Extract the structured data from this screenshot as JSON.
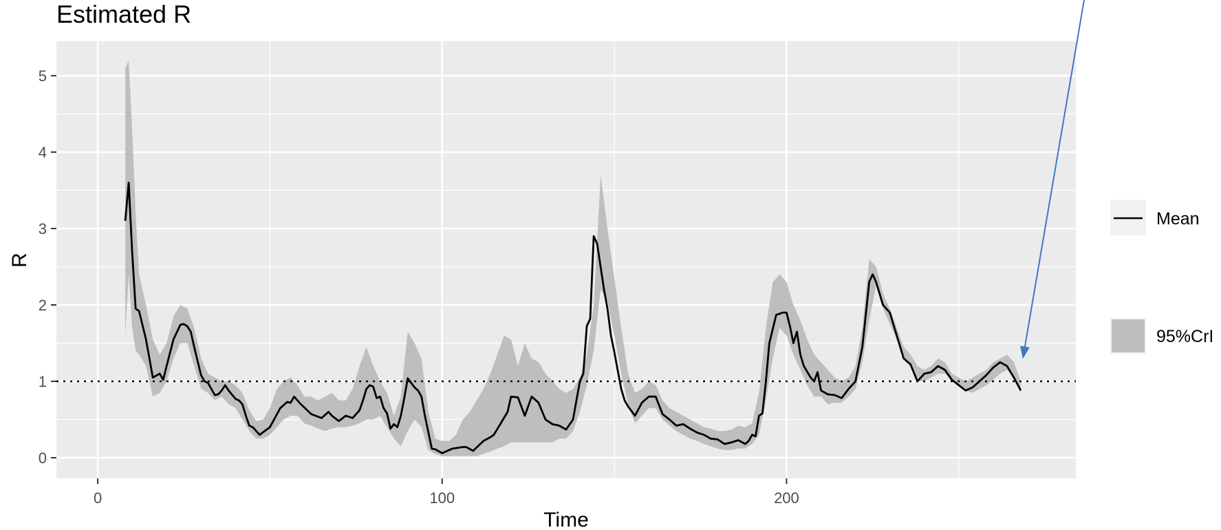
{
  "chart_data": {
    "type": "line",
    "title": "Estimated R",
    "xlabel": "Time",
    "ylabel": "R",
    "xlim": [
      -12,
      284
    ],
    "ylim": [
      -0.27,
      5.45
    ],
    "x_ticks": [
      0,
      100,
      200
    ],
    "x_tick_labels": [
      "0",
      "100",
      "200"
    ],
    "y_ticks": [
      0,
      1,
      2,
      3,
      4,
      5
    ],
    "y_tick_labels": [
      "0",
      "1",
      "2",
      "3",
      "4",
      "5"
    ],
    "grid": true,
    "legend_position": "right",
    "reference_line": {
      "y": 1,
      "style": "dotted"
    },
    "annotation": {
      "type": "arrow",
      "color": "#4472C4",
      "points_to": {
        "x": 268,
        "y": 1.25
      }
    },
    "colors": {
      "panel": "#EBEBEB",
      "grid": "#FFFFFF",
      "mean": "#000000",
      "ribbon": "#BEBEBE",
      "arrow": "#4472C4",
      "legend_key_bg": "#F2F2F2"
    },
    "series": [
      {
        "name": "Mean",
        "kind": "line",
        "x": [
          8,
          9,
          10,
          11,
          12,
          14,
          16,
          18,
          19,
          20,
          22,
          24,
          25,
          26,
          27,
          28,
          30,
          31,
          32,
          33,
          34,
          35,
          36,
          37,
          38,
          40,
          41,
          42,
          43,
          44,
          45,
          47,
          50,
          53,
          55,
          56,
          57,
          58,
          59,
          62,
          65,
          67,
          68,
          70,
          72,
          74,
          76,
          77,
          78,
          79,
          80,
          81,
          82,
          83,
          84,
          85,
          86,
          87,
          88,
          89,
          90,
          92,
          93,
          94,
          95,
          97,
          98,
          100,
          103,
          106,
          107,
          109,
          112,
          114,
          115,
          117,
          119,
          120,
          122,
          124,
          126,
          128,
          130,
          132,
          134,
          136,
          138,
          140,
          141,
          142,
          143,
          144,
          145,
          146,
          147,
          148,
          149,
          150,
          152,
          153,
          154,
          156,
          158,
          160,
          162,
          164,
          166,
          168,
          170,
          172,
          174,
          176,
          178,
          180,
          182,
          184,
          186,
          188,
          189,
          190,
          191,
          192,
          193,
          194,
          195,
          197,
          199,
          200,
          201,
          202,
          203,
          204,
          205,
          207,
          208,
          209,
          210,
          212,
          214,
          216,
          218,
          220,
          222,
          223,
          224,
          225,
          226,
          228,
          230,
          232,
          234,
          236,
          238,
          240,
          242,
          244,
          246,
          248,
          250,
          252,
          254,
          256,
          258,
          260,
          262,
          264,
          266,
          268
        ],
        "y": [
          3.1,
          3.6,
          2.7,
          1.95,
          1.92,
          1.55,
          1.05,
          1.1,
          1.02,
          1.2,
          1.55,
          1.74,
          1.75,
          1.72,
          1.65,
          1.45,
          1.08,
          1.0,
          0.98,
          0.9,
          0.82,
          0.83,
          0.88,
          0.95,
          0.88,
          0.77,
          0.75,
          0.7,
          0.55,
          0.42,
          0.4,
          0.3,
          0.4,
          0.65,
          0.73,
          0.72,
          0.8,
          0.75,
          0.7,
          0.57,
          0.52,
          0.6,
          0.55,
          0.48,
          0.55,
          0.52,
          0.62,
          0.75,
          0.9,
          0.95,
          0.93,
          0.78,
          0.8,
          0.65,
          0.58,
          0.38,
          0.44,
          0.4,
          0.55,
          0.78,
          1.04,
          0.92,
          0.88,
          0.8,
          0.55,
          0.12,
          0.11,
          0.06,
          0.12,
          0.14,
          0.14,
          0.09,
          0.22,
          0.27,
          0.3,
          0.45,
          0.6,
          0.8,
          0.79,
          0.55,
          0.8,
          0.72,
          0.5,
          0.44,
          0.42,
          0.37,
          0.5,
          1.0,
          1.1,
          1.72,
          1.82,
          2.9,
          2.8,
          2.5,
          2.2,
          1.95,
          1.6,
          1.38,
          0.9,
          0.75,
          0.67,
          0.55,
          0.72,
          0.8,
          0.8,
          0.57,
          0.5,
          0.42,
          0.44,
          0.38,
          0.33,
          0.3,
          0.25,
          0.24,
          0.18,
          0.2,
          0.23,
          0.18,
          0.22,
          0.3,
          0.28,
          0.55,
          0.58,
          1.0,
          1.5,
          1.87,
          1.9,
          1.9,
          1.72,
          1.5,
          1.65,
          1.35,
          1.2,
          1.05,
          1.0,
          1.12,
          0.88,
          0.83,
          0.82,
          0.78,
          0.9,
          1.0,
          1.45,
          1.87,
          2.3,
          2.4,
          2.3,
          2.0,
          1.9,
          1.6,
          1.3,
          1.22,
          1.0,
          1.1,
          1.12,
          1.2,
          1.15,
          1.02,
          0.95,
          0.88,
          0.92,
          1.0,
          1.08,
          1.18,
          1.25,
          1.2,
          1.05,
          0.88
        ]
      },
      {
        "name": "95%CrI",
        "kind": "ribbon",
        "x": [
          8,
          9,
          10,
          11,
          12,
          14,
          16,
          18,
          20,
          22,
          24,
          26,
          28,
          30,
          32,
          34,
          36,
          38,
          40,
          42,
          44,
          46,
          48,
          50,
          52,
          54,
          56,
          58,
          60,
          62,
          64,
          66,
          68,
          70,
          72,
          74,
          76,
          78,
          80,
          82,
          84,
          86,
          88,
          90,
          92,
          94,
          96,
          98,
          100,
          102,
          104,
          106,
          108,
          110,
          112,
          114,
          116,
          118,
          120,
          122,
          124,
          126,
          128,
          130,
          132,
          134,
          136,
          138,
          140,
          142,
          144,
          146,
          148,
          150,
          152,
          154,
          156,
          158,
          160,
          162,
          164,
          166,
          168,
          170,
          172,
          174,
          176,
          178,
          180,
          182,
          184,
          186,
          188,
          190,
          192,
          194,
          196,
          198,
          200,
          202,
          204,
          206,
          208,
          210,
          212,
          214,
          216,
          218,
          220,
          222,
          224,
          226,
          228,
          230,
          232,
          234,
          236,
          238,
          240,
          242,
          244,
          246,
          248,
          250,
          252,
          254,
          256,
          258,
          260,
          262,
          264,
          266,
          268
        ],
        "lower": [
          1.6,
          2.4,
          1.7,
          1.4,
          1.35,
          1.2,
          0.8,
          0.85,
          1.0,
          1.3,
          1.5,
          1.5,
          1.2,
          0.9,
          0.85,
          0.75,
          0.8,
          0.7,
          0.65,
          0.5,
          0.35,
          0.25,
          0.25,
          0.3,
          0.4,
          0.5,
          0.55,
          0.55,
          0.45,
          0.42,
          0.38,
          0.35,
          0.38,
          0.4,
          0.4,
          0.42,
          0.45,
          0.5,
          0.5,
          0.55,
          0.4,
          0.25,
          0.15,
          0.35,
          0.5,
          0.4,
          0.1,
          0.05,
          0.02,
          0.02,
          0.02,
          0.02,
          0.02,
          0.02,
          0.05,
          0.08,
          0.12,
          0.15,
          0.2,
          0.2,
          0.2,
          0.2,
          0.2,
          0.2,
          0.2,
          0.25,
          0.25,
          0.35,
          0.6,
          0.95,
          1.4,
          2.2,
          2.05,
          1.6,
          1.1,
          0.7,
          0.45,
          0.55,
          0.65,
          0.65,
          0.5,
          0.42,
          0.35,
          0.3,
          0.25,
          0.22,
          0.18,
          0.15,
          0.12,
          0.1,
          0.1,
          0.12,
          0.12,
          0.18,
          0.3,
          0.75,
          1.3,
          1.7,
          1.6,
          1.35,
          1.15,
          0.95,
          0.8,
          0.8,
          0.7,
          0.72,
          0.72,
          0.8,
          0.9,
          1.25,
          1.8,
          2.25,
          1.95,
          1.75,
          1.55,
          1.3,
          1.2,
          1.0,
          1.0,
          1.05,
          1.1,
          1.1,
          1.0,
          0.95,
          0.88,
          0.85,
          0.9,
          0.95,
          1.02,
          1.1,
          1.15,
          1.05,
          0.85
        ],
        "upper": [
          5.1,
          5.2,
          4.3,
          3.2,
          2.4,
          2.0,
          1.55,
          1.35,
          1.5,
          1.85,
          2.0,
          1.95,
          1.7,
          1.3,
          1.1,
          1.05,
          1.0,
          1.0,
          0.95,
          0.85,
          0.62,
          0.48,
          0.5,
          0.65,
          0.9,
          1.0,
          1.05,
          0.95,
          0.8,
          0.8,
          0.75,
          0.8,
          0.85,
          0.75,
          0.75,
          0.9,
          1.2,
          1.45,
          1.2,
          1.0,
          0.85,
          0.55,
          0.8,
          1.65,
          1.5,
          1.3,
          0.6,
          0.25,
          0.22,
          0.22,
          0.3,
          0.5,
          0.6,
          0.75,
          0.9,
          1.1,
          1.35,
          1.6,
          1.55,
          1.2,
          1.5,
          1.3,
          1.25,
          1.1,
          1.0,
          0.9,
          0.85,
          0.9,
          1.05,
          1.35,
          2.0,
          3.7,
          3.0,
          2.35,
          1.7,
          1.1,
          0.85,
          0.9,
          1.0,
          0.95,
          0.75,
          0.65,
          0.6,
          0.55,
          0.5,
          0.45,
          0.4,
          0.38,
          0.35,
          0.35,
          0.37,
          0.42,
          0.4,
          0.45,
          0.85,
          1.7,
          2.3,
          2.4,
          2.3,
          2.0,
          1.8,
          1.55,
          1.35,
          1.25,
          1.15,
          1.05,
          1.0,
          1.05,
          1.2,
          1.7,
          2.6,
          2.5,
          2.15,
          1.95,
          1.7,
          1.45,
          1.35,
          1.2,
          1.15,
          1.2,
          1.3,
          1.25,
          1.1,
          1.05,
          1.0,
          1.05,
          1.1,
          1.15,
          1.25,
          1.3,
          1.35,
          1.25,
          1.0
        ]
      }
    ]
  }
}
